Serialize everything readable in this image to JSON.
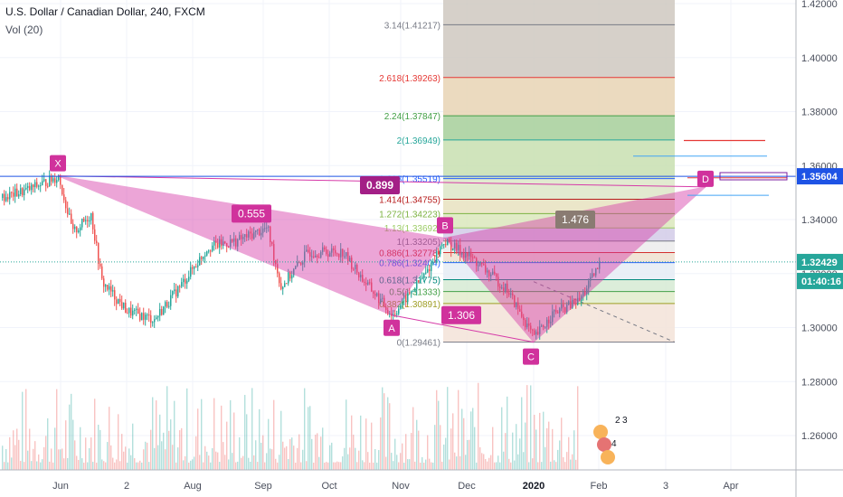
{
  "header": {
    "title": "U.S. Dollar / Canadian Dollar, 240, FXCM",
    "volume_label": "Vol (20)"
  },
  "chart_data": {
    "type": "candlestick",
    "ylim": [
      1.248,
      1.42
    ],
    "y_ticks": [
      "1.42000",
      "1.40000",
      "1.38000",
      "1.36000",
      "1.34000",
      "1.32000",
      "1.30000",
      "1.28000",
      "1.26000"
    ],
    "x_ticks": [
      "Jun",
      "2",
      "Aug",
      "Sep",
      "Oct",
      "Nov",
      "Dec",
      "2020",
      "Feb",
      "3",
      "Apr"
    ],
    "price_badges": [
      {
        "text": "1.35604",
        "color": "#1e53e5"
      },
      {
        "text": "1.32429",
        "color": "#26a69a"
      },
      {
        "text": "01:40:16",
        "color": "#26a69a"
      }
    ],
    "pattern_points": [
      {
        "label": "X",
        "value": 1.3562
      },
      {
        "label": "A",
        "value": 1.3046
      },
      {
        "label": "B",
        "value": 1.3332
      },
      {
        "label": "C",
        "value": 1.2946
      },
      {
        "label": "D",
        "value": 1.3521
      }
    ],
    "pattern_ratios": [
      "0.555",
      "0.899",
      "1.306",
      "1.476"
    ],
    "fib_levels": [
      {
        "text": "3.14(1.41217)",
        "value": 1.41217,
        "color": "#787b86",
        "fill": "#cfc8c0"
      },
      {
        "text": "2.618(1.39263)",
        "value": 1.39263,
        "color": "#e53935",
        "fill": "#e8d3b4"
      },
      {
        "text": "2.24(1.37847)",
        "value": 1.37847,
        "color": "#43a047",
        "fill": "#a6cf9a"
      },
      {
        "text": "2(1.36949)",
        "value": 1.36949,
        "color": "#26a69a",
        "fill": "#c8dfb0"
      },
      {
        "text": "1.618(1.35519)",
        "value": 1.35519,
        "color": "#2962ff",
        "fill": "#dde6c8"
      },
      {
        "text": "1.414(1.34755)",
        "value": 1.34755,
        "color": "#b71c1c",
        "fill": "#e7e2c0"
      },
      {
        "text": "1.272(1.34223)",
        "value": 1.34223,
        "color": "#7cb342",
        "fill": "#dbe8bc"
      },
      {
        "text": "1.13(1.33692)",
        "value": 1.33692,
        "color": "#9ccc65",
        "fill": "#d2cbe8"
      },
      {
        "text": "1(1.33205)",
        "value": 1.33205,
        "color": "#787b86",
        "fill": "#ececec"
      },
      {
        "text": "0.886(1.32778)",
        "value": 1.32778,
        "color": "#d32f2f",
        "fill": "#efe0d0"
      },
      {
        "text": "0.786(1.32404)",
        "value": 1.32404,
        "color": "#2962ff",
        "fill": "#e5ecf5"
      },
      {
        "text": "0.618(1.31775)",
        "value": 1.31775,
        "color": "#00897b",
        "fill": "#d6ead4"
      },
      {
        "text": "0.5(1.31333)",
        "value": 1.31333,
        "color": "#43a047",
        "fill": "#e2eccb"
      },
      {
        "text": "0.382(1.30891)",
        "value": 1.30891,
        "color": "#9e9d24",
        "fill": "#f3e3d8"
      },
      {
        "text": "0(1.29461)",
        "value": 1.29461,
        "color": "#787b86",
        "fill": "#f3d7d7"
      }
    ],
    "volume_badges": [
      "2",
      "3",
      "4"
    ],
    "colors": {
      "up": "#26a69a",
      "down": "#ef5350",
      "pattern": "#d63aa8",
      "label_bg": "#d0329c"
    }
  }
}
